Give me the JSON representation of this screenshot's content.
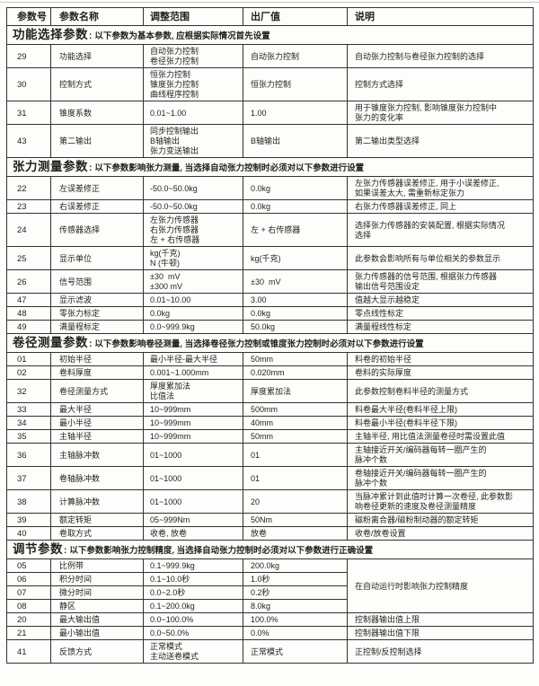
{
  "colors": {
    "page_background": "#fdfdfb",
    "border": "#34322e",
    "text": "#211f1c",
    "top_rule": "#c6c5c1"
  },
  "table": {
    "section_colon": ":",
    "columns": [
      {
        "label": "参数号"
      },
      {
        "label": "参数名称"
      },
      {
        "label": "调整范围"
      },
      {
        "label": "出厂值"
      },
      {
        "label": "说明"
      }
    ],
    "sections": [
      {
        "title": "功能选择参数",
        "subtitle": "以下参数为基本参数, 应根据实际情况首先设置",
        "rows": [
          {
            "id": "29",
            "name": "功能选择",
            "range": [
              "自动张力控制",
              "卷径张力控制"
            ],
            "default": "自动张力控制",
            "desc": [
              "自动张力控制与卷径张力控制的选择"
            ]
          },
          {
            "id": "30",
            "name": "控制方式",
            "range": [
              "恒张力控制",
              "锥度张力控制",
              "曲线程序控制"
            ],
            "default": "恒张力控制",
            "desc": [
              "控制方式选择"
            ]
          },
          {
            "id": "31",
            "name": "锥度系数",
            "range": [
              "0.01~1.00"
            ],
            "default": "1.00",
            "desc": [
              "用于锥度张力控制, 影响锥度张力控制中",
              "张力的变化率"
            ]
          },
          {
            "id": "43",
            "name": "第二输出",
            "range": [
              "同步控制输出",
              "B轴输出",
              "张力变送输出"
            ],
            "default": "B轴输出",
            "desc": [
              "第二输出类型选择"
            ]
          }
        ]
      },
      {
        "title": "张力测量参数",
        "subtitle": "以下参数影响张力测量, 当选择自动张力控制时必须对以下参数进行设置",
        "rows": [
          {
            "id": "22",
            "name": "左误差修正",
            "range": [
              "-50.0~50.0kg"
            ],
            "default": "0.0kg",
            "desc": [
              "左张力传感器误差修正, 用于小误差修正,",
              "如果误差太大, 需重新标定张力"
            ]
          },
          {
            "id": "23",
            "name": "右误差修正",
            "range": [
              "-50.0~50.0kg"
            ],
            "default": "0.0kg",
            "desc": [
              "右张力传感器误差修正, 同上"
            ]
          },
          {
            "id": "24",
            "name": "传感器选择",
            "range": [
              "左张力传感器",
              "右张力传感器",
              "左 + 右传感器"
            ],
            "default": "左 + 右传感器",
            "desc": [
              "选择张力传感器的安装配置, 根据实际情况",
              "选择"
            ]
          },
          {
            "id": "25",
            "name": "显示单位",
            "range": [
              "kg(千克)",
              "N (牛顿)"
            ],
            "default": "kg(千克)",
            "desc": [
              "此参数会影响所有与单位相关的参数显示"
            ]
          },
          {
            "id": "26",
            "name": "信号范围",
            "range": [
              "±30  mV",
              "±300 mV"
            ],
            "default": "±30  mV",
            "desc": [
              "张力传感器的信号范围, 根据张力传感器",
              "输出信号范围设定"
            ]
          },
          {
            "id": "47",
            "name": "显示滤波",
            "range": [
              "0.01~10.00"
            ],
            "default": "3.00",
            "desc": [
              "值越大显示越稳定"
            ]
          },
          {
            "id": "48",
            "name": "零张力标定",
            "range": [
              "0.0kg"
            ],
            "default": "0.0kg",
            "desc": [
              "零点线性标定"
            ]
          },
          {
            "id": "49",
            "name": "满量程标定",
            "range": [
              "0.0~999.9kg"
            ],
            "default": "50.0kg",
            "desc": [
              "满量程线性标定"
            ]
          }
        ]
      },
      {
        "title": "卷径测量参数",
        "subtitle": "以下参数影响卷径测量, 当选择卷径张力控制或锥度张力控制时必须对以下参数进行设置",
        "rows": [
          {
            "id": "01",
            "name": "初始半径",
            "range": [
              "最小半径-最大半径"
            ],
            "default": "50mm",
            "desc": [
              "料卷的初始半径"
            ]
          },
          {
            "id": "02",
            "name": "卷料厚度",
            "range": [
              "0.001~1.000mm"
            ],
            "default": "0.020mm",
            "desc": [
              "卷料的实际厚度"
            ]
          },
          {
            "id": "32",
            "name": "卷径测量方式",
            "range": [
              "厚度累加法",
              "比值法"
            ],
            "default": "厚度累加法",
            "desc": [
              "此参数控制卷料半径的测量方式"
            ]
          },
          {
            "id": "33",
            "name": "最大半径",
            "range": [
              "10~999mm"
            ],
            "default": "500mm",
            "desc": [
              "料卷最大半径(卷料半径上限)"
            ]
          },
          {
            "id": "34",
            "name": "最小半径",
            "range": [
              "10~999mm"
            ],
            "default": "40mm",
            "desc": [
              "料卷最小半径(卷料半径下限)"
            ]
          },
          {
            "id": "35",
            "name": "主轴半径",
            "range": [
              "10~999mm"
            ],
            "default": "50mm",
            "desc": [
              "主轴半径, 用比值法测量卷径时需设置此值"
            ]
          },
          {
            "id": "36",
            "name": "主轴脉冲数",
            "range": [
              "01~1000"
            ],
            "default": "01",
            "desc": [
              "主轴接近开关/编码器每转一圈产生的",
              "脉冲个数"
            ]
          },
          {
            "id": "37",
            "name": "卷轴脉冲数",
            "range": [
              "01~1000"
            ],
            "default": "01",
            "desc": [
              "卷轴接近开关/编码器每转一圈产生的",
              "脉冲个数"
            ]
          },
          {
            "id": "38",
            "name": "计算脉冲数",
            "range": [
              "01~1000"
            ],
            "default": "20",
            "desc": [
              "当脉冲累计到此值时计算一次卷径, 此参数影",
              "响卷径更新的速度及卷径测量精度"
            ]
          },
          {
            "id": "39",
            "name": "额定转矩",
            "range": [
              "05~999Nm"
            ],
            "default": "50Nm",
            "desc": [
              "磁粉离合器/磁粉制动器的额定转矩"
            ]
          },
          {
            "id": "40",
            "name": "卷取方式",
            "range": [
              "收卷, 放卷"
            ],
            "default": "放卷",
            "desc": [
              "收卷/放卷设置"
            ]
          }
        ]
      },
      {
        "title": "调节参数",
        "subtitle": "以下参数影响张力控制精度, 当选择自动张力控制时必须对以下参数进行正确设置",
        "rows": [
          {
            "id": "05",
            "name": "比例带",
            "range": [
              "0.1~999.9kg"
            ],
            "default": "200.0kg",
            "desc": [
              "在自动运行时影响张力控制精度"
            ],
            "desc_rowspan": 4
          },
          {
            "id": "06",
            "name": "积分时间",
            "range": [
              "0.1~10.0秒"
            ],
            "default": "1.0秒",
            "desc_merged": true
          },
          {
            "id": "07",
            "name": "微分时间",
            "range": [
              "0.0~2.0秒"
            ],
            "default": "0.2秒",
            "desc_merged": true
          },
          {
            "id": "08",
            "name": "静区",
            "range": [
              "0.1~200.0kg"
            ],
            "default": "8.0kg",
            "desc_merged": true
          },
          {
            "id": "20",
            "name": "最大输出值",
            "range": [
              "0.0~100.0%"
            ],
            "default": "100.0%",
            "desc": [
              "控制器输出值上限"
            ]
          },
          {
            "id": "21",
            "name": "最小输出值",
            "range": [
              "0.0~50.0%"
            ],
            "default": "0.0%",
            "desc": [
              "控制器输出值下限"
            ]
          },
          {
            "id": "41",
            "name": "反馈方式",
            "range": [
              "正常模式",
              "主动送卷模式"
            ],
            "default": "正常模式",
            "desc": [
              "正控制/反控制选择"
            ]
          }
        ]
      }
    ]
  }
}
